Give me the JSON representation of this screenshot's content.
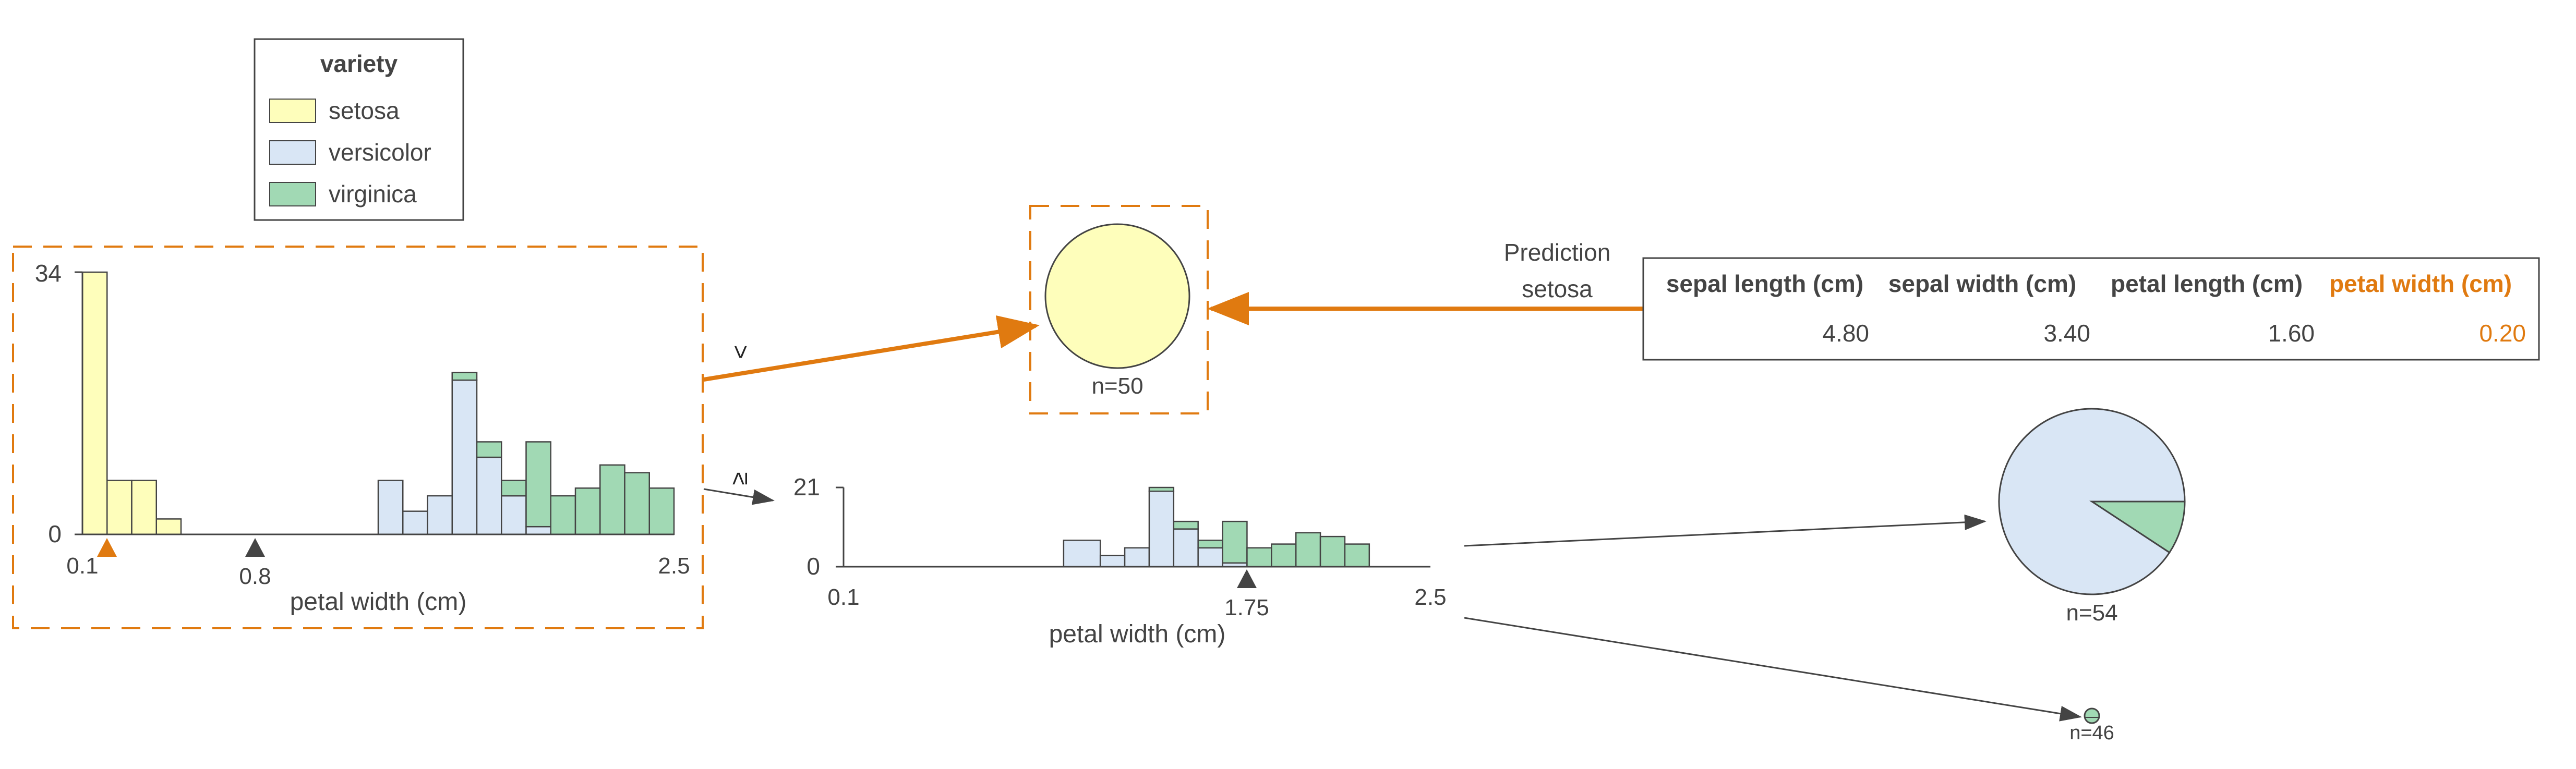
{
  "legend": {
    "title": "variety",
    "items": [
      {
        "label": "setosa",
        "color": "#fefebb"
      },
      {
        "label": "versicolor",
        "color": "#d9e6f5"
      },
      {
        "label": "virginica",
        "color": "#a1d9b4"
      }
    ]
  },
  "colors": {
    "highlight": "#e07a10",
    "split_marker": "#444444",
    "edge": "#444444",
    "bar_stroke": "#444444"
  },
  "root_node": {
    "xlabel": "petal width (cm)",
    "x_ticks": [
      "0.1",
      "0.8",
      "2.5"
    ],
    "y_ticks": [
      "34",
      "0"
    ],
    "split_value": "0.8",
    "instance_value": 0.2,
    "edge_left_label": "<",
    "edge_right_label": "≥"
  },
  "internal_node": {
    "xlabel": "petal width (cm)",
    "x_ticks": [
      "0.1",
      "1.75",
      "2.5"
    ],
    "y_ticks": [
      "21",
      "0"
    ],
    "split_value": "1.75"
  },
  "leaves": [
    {
      "label": "n=50",
      "highlighted": true
    },
    {
      "label": "n=54",
      "highlighted": false
    },
    {
      "label": "n=46",
      "highlighted": false
    }
  ],
  "prediction": {
    "label_line1": "Prediction",
    "label_line2": "setosa"
  },
  "instance_table": {
    "headers": [
      "sepal length (cm)",
      "sepal width (cm)",
      "petal length (cm)",
      "petal width (cm)"
    ],
    "values": [
      "4.80",
      "3.40",
      "1.60",
      "0.20"
    ],
    "highlighted_column": 3
  },
  "chart_data": [
    {
      "type": "bar",
      "stacked": true,
      "xlabel": "petal width (cm)",
      "x_range": [
        0.1,
        2.5
      ],
      "ylim": [
        0,
        34
      ],
      "bin_edges": [
        0.1,
        0.2,
        0.3,
        0.4,
        0.5,
        0.6,
        0.7,
        0.8,
        0.9,
        1.0,
        1.1,
        1.2,
        1.3,
        1.4,
        1.5,
        1.6,
        1.7,
        1.8,
        1.9,
        2.0,
        2.1,
        2.2,
        2.3,
        2.4,
        2.5
      ],
      "series": [
        {
          "name": "setosa",
          "values": [
            34,
            7,
            7,
            2,
            0,
            0,
            0,
            0,
            0,
            0,
            0,
            0,
            0,
            0,
            0,
            0,
            0,
            0,
            0,
            0,
            0,
            0,
            0,
            0
          ]
        },
        {
          "name": "versicolor",
          "values": [
            0,
            0,
            0,
            0,
            0,
            0,
            0,
            0,
            0,
            0,
            0,
            0,
            7,
            3,
            5,
            20,
            10,
            5,
            1,
            0,
            0,
            0,
            0,
            0
          ]
        },
        {
          "name": "virginica",
          "values": [
            0,
            0,
            0,
            0,
            0,
            0,
            0,
            0,
            0,
            0,
            0,
            0,
            0,
            0,
            0,
            1,
            2,
            2,
            11,
            5,
            6,
            9,
            8,
            6
          ]
        }
      ]
    },
    {
      "type": "bar",
      "stacked": true,
      "xlabel": "petal width (cm)",
      "x_range": [
        0.1,
        2.5
      ],
      "ylim": [
        0,
        21
      ],
      "bin_edges": [
        1.0,
        1.15,
        1.25,
        1.35,
        1.45,
        1.55,
        1.65,
        1.75,
        1.85,
        1.95,
        2.05,
        2.15,
        2.25,
        2.35,
        2.5
      ],
      "series": [
        {
          "name": "versicolor",
          "values": [
            7,
            3,
            5,
            20,
            10,
            5,
            1,
            0,
            0,
            0,
            0,
            0,
            0,
            0
          ]
        },
        {
          "name": "virginica",
          "values": [
            0,
            0,
            0,
            1,
            2,
            2,
            11,
            5,
            6,
            9,
            8,
            6,
            0,
            0
          ]
        }
      ]
    },
    {
      "type": "pie",
      "label": "n=54",
      "slices": [
        {
          "name": "versicolor",
          "value": 49
        },
        {
          "name": "virginica",
          "value": 5
        }
      ]
    }
  ]
}
